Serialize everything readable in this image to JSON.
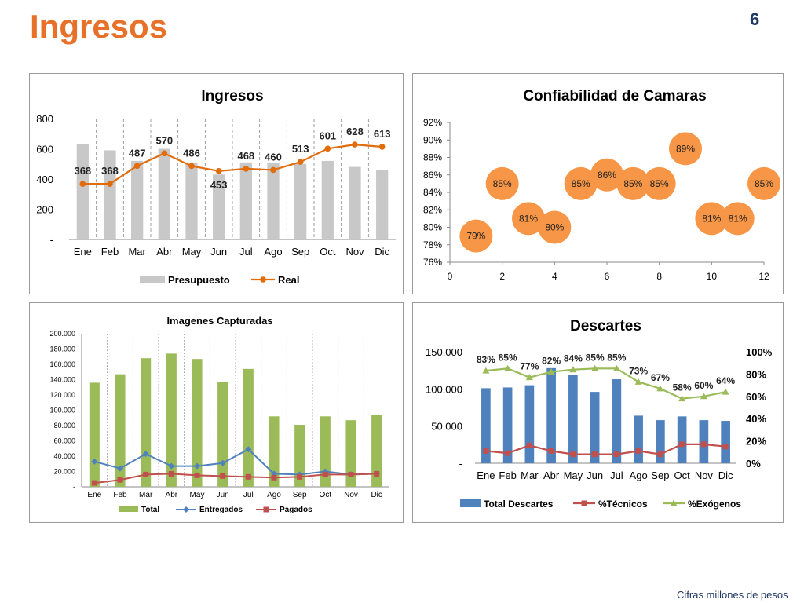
{
  "page": {
    "title": "Ingresos",
    "number": "6",
    "footnote": "Cifras millones de pesos"
  },
  "colors": {
    "accent": "#e8712a",
    "navy": "#1f3864",
    "presupuesto": "#c8c8c8",
    "real": "#e26b0a",
    "bubble": "#f79646",
    "total_green": "#9bbb59",
    "entregados": "#4f81bd",
    "pagados": "#c0504d",
    "descartes_bar": "#4f81bd",
    "tecnicos": "#c0504d",
    "exogenos": "#9bbb59"
  },
  "chart_data": [
    {
      "id": "ingresos",
      "type": "bar",
      "title": "Ingresos",
      "categories": [
        "Ene",
        "Feb",
        "Mar",
        "Abr",
        "May",
        "Jun",
        "Jul",
        "Ago",
        "Sep",
        "Oct",
        "Nov",
        "Dic"
      ],
      "ylim": [
        0,
        800
      ],
      "yticks": [
        0,
        200,
        400,
        600,
        800
      ],
      "ytick_labels": [
        "-",
        "200",
        "400",
        "600",
        "800"
      ],
      "series": [
        {
          "name": "Presupuesto",
          "kind": "bar",
          "values": [
            630,
            590,
            520,
            600,
            510,
            430,
            510,
            510,
            500,
            520,
            480,
            460
          ]
        },
        {
          "name": "Real",
          "kind": "line",
          "values": [
            368,
            368,
            487,
            570,
            486,
            453,
            468,
            460,
            513,
            601,
            628,
            613
          ],
          "labels": [
            "368",
            "368",
            "487",
            "570",
            "486",
            "453",
            "468",
            "460",
            "513",
            "601",
            "628",
            "613"
          ]
        }
      ],
      "legend": "bottom",
      "grid": "vertical-dashed"
    },
    {
      "id": "confiabilidad",
      "type": "scatter",
      "title": "Confiabilidad de Camaras",
      "xlim": [
        0,
        12
      ],
      "ylim": [
        76,
        92
      ],
      "xticks": [
        "0",
        "2",
        "4",
        "6",
        "8",
        "10",
        "12"
      ],
      "yticks": [
        "76%",
        "78%",
        "80%",
        "82%",
        "84%",
        "86%",
        "88%",
        "90%",
        "92%"
      ],
      "points": [
        {
          "x": 1,
          "y": 79,
          "label": "79%"
        },
        {
          "x": 2,
          "y": 85,
          "label": "85%"
        },
        {
          "x": 3,
          "y": 81,
          "label": "81%"
        },
        {
          "x": 4,
          "y": 80,
          "label": "80%"
        },
        {
          "x": 5,
          "y": 85,
          "label": "85%"
        },
        {
          "x": 6,
          "y": 86,
          "label": "86%"
        },
        {
          "x": 7,
          "y": 85,
          "label": "85%"
        },
        {
          "x": 8,
          "y": 85,
          "label": "85%"
        },
        {
          "x": 9,
          "y": 89,
          "label": "89%"
        },
        {
          "x": 10,
          "y": 81,
          "label": "81%"
        },
        {
          "x": 11,
          "y": 81,
          "label": "81%"
        },
        {
          "x": 12,
          "y": 85,
          "label": "85%"
        }
      ],
      "grid": false
    },
    {
      "id": "imagenes",
      "type": "bar",
      "title": "Imagenes Capturadas",
      "categories": [
        "Ene",
        "Feb",
        "Mar",
        "Abr",
        "May",
        "Jun",
        "Jul",
        "Ago",
        "Sep",
        "Oct",
        "Nov",
        "Dic"
      ],
      "ylim": [
        0,
        200000
      ],
      "yticks": [
        0,
        20000,
        40000,
        60000,
        80000,
        100000,
        120000,
        140000,
        160000,
        180000,
        200000
      ],
      "ytick_labels": [
        "-",
        "20.000",
        "40.000",
        "60.000",
        "80.000",
        "100.000",
        "120.000",
        "140.000",
        "160.000",
        "180.000",
        "200.000"
      ],
      "series": [
        {
          "name": "Total",
          "kind": "bar",
          "values": [
            136000,
            147000,
            168000,
            174000,
            167000,
            137000,
            154000,
            92000,
            81000,
            92000,
            87000,
            94000
          ]
        },
        {
          "name": "Entregados",
          "kind": "line",
          "values": [
            33000,
            24000,
            43000,
            27000,
            27000,
            31000,
            49000,
            17000,
            16000,
            20000,
            16000,
            17000
          ]
        },
        {
          "name": "Pagados",
          "kind": "line",
          "values": [
            5000,
            9000,
            16000,
            17000,
            15000,
            14000,
            13000,
            12000,
            13000,
            16000,
            16000,
            17000
          ]
        }
      ],
      "legend": "bottom",
      "grid": "vertical-dashed"
    },
    {
      "id": "descartes",
      "type": "bar",
      "title": "Descartes",
      "categories": [
        "Ene",
        "Feb",
        "Mar",
        "Abr",
        "May",
        "Jun",
        "Jul",
        "Ago",
        "Sep",
        "Oct",
        "Nov",
        "Dic"
      ],
      "ylim": [
        0,
        150000
      ],
      "yticks": [
        0,
        50000,
        100000,
        150000
      ],
      "ytick_labels": [
        "-",
        "50.000",
        "100.000",
        "150.000"
      ],
      "y2lim": [
        0,
        100
      ],
      "y2ticks": [
        0,
        20,
        40,
        60,
        80,
        100
      ],
      "y2tick_labels": [
        "0%",
        "20%",
        "40%",
        "60%",
        "80%",
        "100%"
      ],
      "series": [
        {
          "name": "Total Descartes",
          "kind": "bar",
          "axis": "left",
          "values": [
            101000,
            102000,
            105000,
            128000,
            119000,
            96000,
            113000,
            64000,
            58000,
            63000,
            58000,
            57000
          ]
        },
        {
          "name": "%Técnicos",
          "kind": "line",
          "axis": "right",
          "values": [
            11,
            9,
            16,
            11,
            8,
            8,
            8,
            11,
            8,
            17,
            17,
            15
          ]
        },
        {
          "name": "%Exógenos",
          "kind": "line",
          "axis": "right",
          "values": [
            83,
            85,
            77,
            82,
            84,
            85,
            85,
            73,
            67,
            58,
            60,
            64
          ],
          "labels": [
            "83%",
            "85%",
            "77%",
            "82%",
            "84%",
            "85%",
            "85%",
            "73%",
            "67%",
            "58%",
            "60%",
            "64%"
          ]
        }
      ],
      "legend": "bottom",
      "grid": false
    }
  ]
}
